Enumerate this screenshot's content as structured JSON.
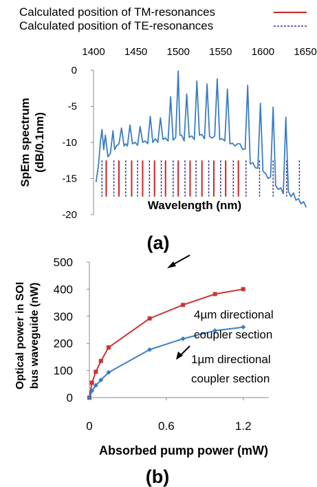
{
  "chart_data": [
    {
      "panel_label": "(a)",
      "type": "line",
      "xlabel": "Wavelength (nm)",
      "ylabel_lines": [
        "SpEm spectrum",
        "(dB/0.1nm)"
      ],
      "xlim": [
        1400,
        1650
      ],
      "ylim": [
        -20,
        0
      ],
      "x_ticks": [
        1400,
        1450,
        1500,
        1550,
        1600,
        1650
      ],
      "y_ticks": [
        0,
        -5,
        -10,
        -15,
        -20
      ],
      "legend": [
        {
          "label": "Calculated position of TM-resonances",
          "color": "#cc2222",
          "style": "solid"
        },
        {
          "label": "Calculated position of TE-resonances",
          "color": "#333399",
          "style": "dashed"
        }
      ],
      "series": [
        {
          "color": "#3a7cc4",
          "x": [
            1403,
            1406,
            1408,
            1410,
            1412,
            1414,
            1417,
            1420,
            1423,
            1425,
            1427,
            1430,
            1433,
            1436,
            1438,
            1440,
            1443,
            1446,
            1449,
            1452,
            1455,
            1458,
            1461,
            1464,
            1467,
            1470,
            1473,
            1476,
            1479,
            1482,
            1485,
            1488,
            1491,
            1494,
            1497,
            1500,
            1502,
            1504,
            1507,
            1510,
            1513,
            1516,
            1519,
            1522,
            1525,
            1528,
            1531,
            1534,
            1537,
            1540,
            1543,
            1546,
            1549,
            1552,
            1555,
            1558,
            1561,
            1564,
            1567,
            1570,
            1573,
            1576,
            1579,
            1582,
            1585,
            1588,
            1591,
            1594,
            1597,
            1600,
            1603,
            1606,
            1609,
            1612,
            1615,
            1618,
            1621,
            1624,
            1627,
            1630,
            1633,
            1636,
            1639,
            1642,
            1645,
            1648,
            1651
          ],
          "y": [
            -15.5,
            -13,
            -10,
            -8.2,
            -11,
            -9,
            -12,
            -11.5,
            -8.4,
            -11,
            -10.5,
            -10.2,
            -8,
            -10.5,
            -10.2,
            -10.5,
            -7.6,
            -10.2,
            -10,
            -10.4,
            -7.8,
            -10,
            -9.8,
            -10.2,
            -6.4,
            -10,
            -9.5,
            -10,
            -6.6,
            -9.6,
            -9.4,
            -9.8,
            -3.7,
            -9.7,
            -9.3,
            -0.1,
            -9,
            -9,
            -9.8,
            -3.3,
            -9.3,
            -9.1,
            -9.6,
            -1.5,
            -9,
            -8.9,
            -9.5,
            -1.9,
            -9.2,
            -9.4,
            -9.1,
            -1.2,
            -9.6,
            -9.5,
            -9.8,
            -2.6,
            -10.2,
            -10.1,
            -10.5,
            -10.2,
            -10.2,
            -11,
            -10.9,
            -2.1,
            -13,
            -12.8,
            -13.5,
            -13.6,
            -4.6,
            -14,
            -14.3,
            -15,
            -14.8,
            -5.1,
            -16,
            -16.5,
            -16.3,
            -17.1,
            -6.5,
            -16.8,
            -17.5,
            -17,
            -18,
            -17.8,
            -18.5,
            -18.2,
            -19
          ]
        }
      ],
      "tm_resonances": [
        1415,
        1430,
        1445,
        1458,
        1472,
        1485,
        1500,
        1514,
        1528,
        1542,
        1556,
        1571
      ],
      "te_resonances": [
        1410,
        1424,
        1438,
        1452,
        1466,
        1480,
        1494,
        1508,
        1521,
        1536,
        1550,
        1565,
        1580,
        1596,
        1612,
        1628,
        1643
      ]
    },
    {
      "panel_label": "(b)",
      "type": "line",
      "xlabel": "Absorbed pump power (mW)",
      "ylabel_lines": [
        "Optical power in SOI",
        "bus waveguide (nW)"
      ],
      "xlim": [
        0,
        1.4
      ],
      "ylim": [
        0,
        500
      ],
      "x_ticks": [
        0,
        0.6,
        1.2
      ],
      "y_ticks": [
        0,
        100,
        200,
        300,
        400,
        500
      ],
      "series": [
        {
          "annotation_lines": [
            "4µm directional",
            "coupler section"
          ],
          "color": "#cc3333",
          "marker": "square",
          "x": [
            0,
            0.02,
            0.05,
            0.09,
            0.15,
            0.47,
            0.73,
            0.98,
            1.2
          ],
          "y": [
            0,
            55,
            95,
            135,
            185,
            292,
            342,
            382,
            400
          ]
        },
        {
          "annotation_lines": [
            "1µm directional",
            "coupler section"
          ],
          "color": "#3a7cc4",
          "marker": "diamond",
          "x": [
            0,
            0.02,
            0.05,
            0.09,
            0.15,
            0.47,
            0.73,
            0.98,
            1.2
          ],
          "y": [
            0,
            25,
            45,
            65,
            93,
            177,
            217,
            247,
            260
          ]
        }
      ]
    }
  ]
}
